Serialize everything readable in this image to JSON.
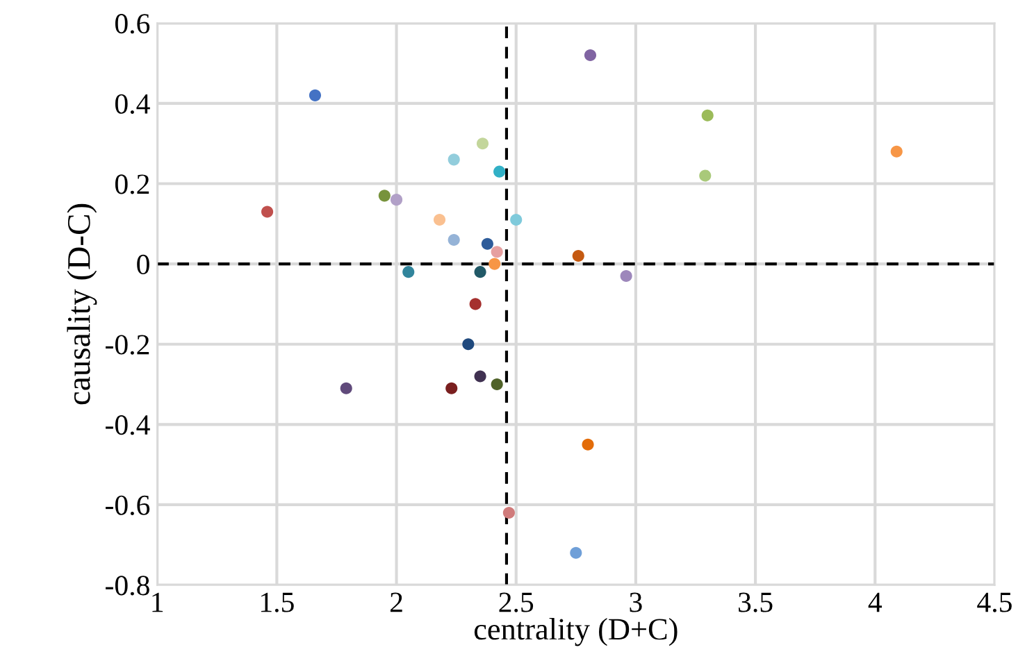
{
  "chart_data": {
    "type": "scatter",
    "xlabel": "centrality (D+C)",
    "ylabel": "causality (D-C)",
    "x": [
      1.66,
      1.46,
      1.95,
      2.0,
      2.18,
      2.24,
      2.24,
      2.36,
      2.43,
      2.5,
      2.38,
      2.42,
      2.41,
      2.05,
      2.35,
      2.33,
      2.3,
      2.35,
      2.42,
      2.23,
      1.79,
      2.76,
      2.96,
      2.81,
      3.3,
      3.29,
      4.09,
      2.8,
      2.75,
      2.47
    ],
    "values": [
      0.42,
      0.13,
      0.17,
      0.16,
      0.11,
      0.06,
      0.26,
      0.3,
      0.23,
      0.11,
      0.05,
      0.03,
      0.0,
      -0.02,
      -0.02,
      -0.1,
      -0.2,
      -0.28,
      -0.3,
      -0.31,
      -0.31,
      0.02,
      -0.03,
      0.52,
      0.37,
      0.22,
      0.28,
      -0.45,
      -0.72,
      -0.62
    ],
    "colors": [
      "#4472c4",
      "#c0504d",
      "#77933c",
      "#b1a0c7",
      "#fac090",
      "#95b3d7",
      "#92cddc",
      "#c3d69b",
      "#31b0c6",
      "#7fcadb",
      "#2e5c9a",
      "#e6a0a0",
      "#f79646",
      "#31859c",
      "#215967",
      "#a5302e",
      "#1f497d",
      "#403151",
      "#4f6228",
      "#7a1f1f",
      "#604a7b",
      "#c55a11",
      "#9d87bb",
      "#8064a2",
      "#9bbb59",
      "#a9c97a",
      "#f79646",
      "#e36c09",
      "#6f9fd8",
      "#d07b7b"
    ],
    "marker": "circle",
    "xlim": [
      1,
      4.5
    ],
    "xticks": [
      1,
      1.5,
      2,
      2.5,
      3,
      3.5,
      4,
      4.5
    ],
    "ylim": [
      -0.8,
      0.6
    ],
    "yticks": [
      -0.8,
      -0.6,
      -0.4,
      -0.2,
      0,
      0.2,
      0.4,
      0.6
    ],
    "grid": true,
    "ref_lines": [
      {
        "axis": "y",
        "value": 0,
        "color": "#000000",
        "line_style": "dashed"
      },
      {
        "axis": "x",
        "value": 2.46,
        "color": "#000000",
        "line_style": "dashed"
      }
    ]
  }
}
